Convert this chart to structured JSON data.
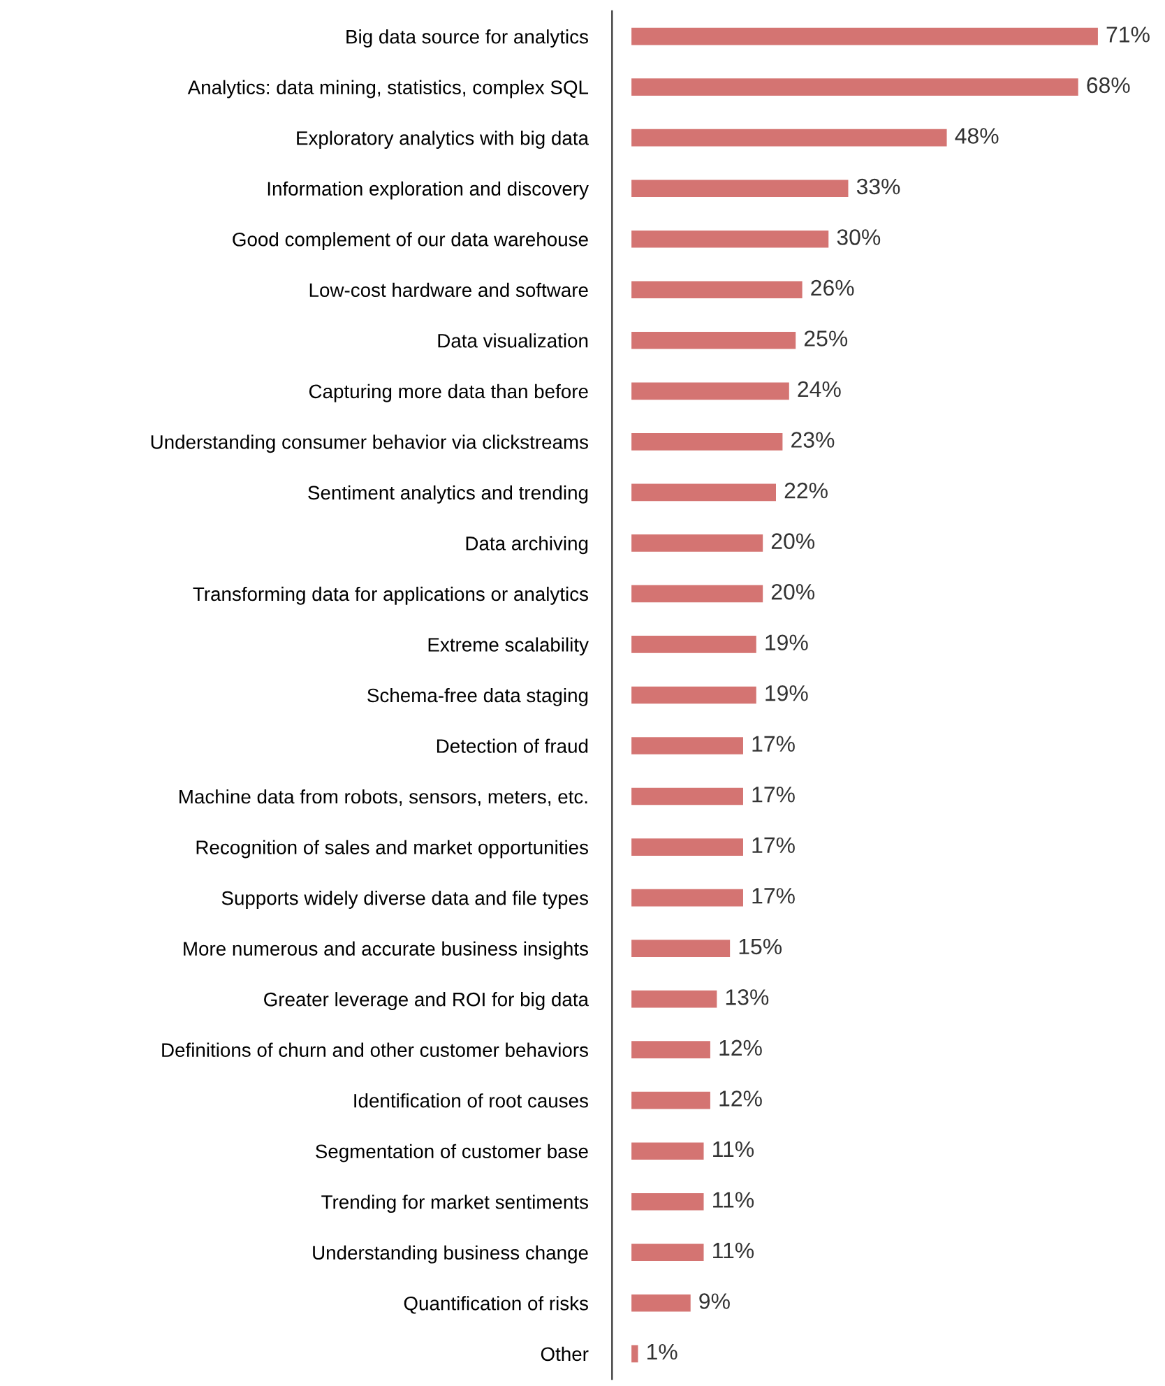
{
  "chart_data": {
    "type": "bar",
    "orientation": "horizontal",
    "color": "#d47472",
    "categories": [
      "Big data source for analytics",
      "Analytics: data mining, statistics, complex SQL",
      "Exploratory analytics with big data",
      "Information exploration and discovery",
      "Good complement of our data warehouse",
      "Low-cost hardware and software",
      "Data visualization",
      "Capturing more data than before",
      "Understanding consumer behavior via clickstreams",
      "Sentiment analytics and trending",
      "Data archiving",
      "Transforming data for applications or analytics",
      "Extreme scalability",
      "Schema-free data staging",
      "Detection of fraud",
      "Machine data from robots, sensors, meters, etc.",
      "Recognition of sales and market opportunities",
      "Supports widely diverse data and file types",
      "More numerous and accurate business insights",
      "Greater leverage and ROI for big data",
      "Definitions of churn and other customer behaviors",
      "Identification of root causes",
      "Segmentation of customer base",
      "Trending for market sentiments",
      "Understanding business change",
      "Quantification of risks",
      "Other"
    ],
    "values": [
      71,
      68,
      48,
      33,
      30,
      26,
      25,
      24,
      23,
      22,
      20,
      20,
      19,
      19,
      17,
      17,
      17,
      17,
      15,
      13,
      12,
      12,
      11,
      11,
      11,
      9,
      1
    ],
    "value_labels": [
      "71%",
      "68%",
      "48%",
      "33%",
      "30%",
      "26%",
      "25%",
      "24%",
      "23%",
      "22%",
      "20%",
      "20%",
      "19%",
      "19%",
      "17%",
      "17%",
      "17%",
      "17%",
      "15%",
      "13%",
      "12%",
      "12%",
      "11%",
      "11%",
      "11%",
      "9%",
      "1%"
    ]
  }
}
